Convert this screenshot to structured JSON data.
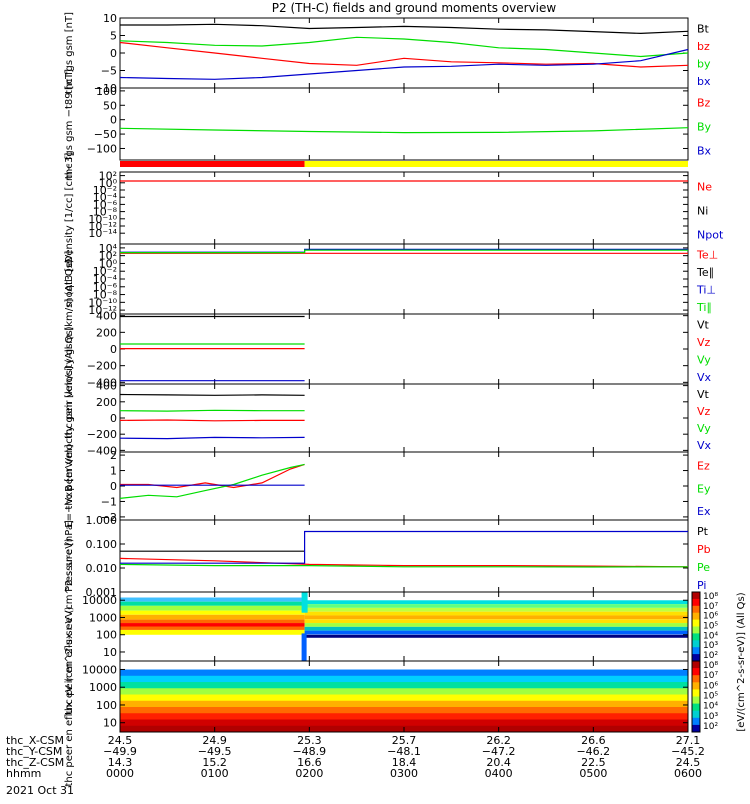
{
  "title": "P2 (TH-C) fields and ground moments overview",
  "date_label": "2021 Oct 31",
  "time_axis": {
    "row_labels": [
      "thc_X-CSM",
      "thc_Y-CSM",
      "thc_Z-CSM",
      "hhmm"
    ],
    "columns": [
      {
        "x": "24.5",
        "y": "−49.9",
        "z": "14.3",
        "t": "0000"
      },
      {
        "x": "24.9",
        "y": "−49.5",
        "z": "15.2",
        "t": "0100"
      },
      {
        "x": "25.3",
        "y": "−48.9",
        "z": "16.6",
        "t": "0200"
      },
      {
        "x": "25.7",
        "y": "−48.1",
        "z": "18.4",
        "t": "0300"
      },
      {
        "x": "26.2",
        "y": "−47.2",
        "z": "20.4",
        "t": "0400"
      },
      {
        "x": "26.6",
        "y": "−46.2",
        "z": "22.5",
        "t": "0500"
      },
      {
        "x": "27.1",
        "y": "−45.2",
        "z": "24.5",
        "t": "0600"
      }
    ]
  },
  "colors": {
    "black": "#000000",
    "red": "#ff0000",
    "green": "#00dd00",
    "blue": "#0000cc",
    "yellow": "#ffff00"
  },
  "colorbar": {
    "label": "[eV/(cm^2-s-sr-eV)] (All Qs)",
    "top_ticks": [
      "10⁸",
      "10⁷",
      "10⁶",
      "10⁵",
      "10⁴",
      "10³",
      "10²"
    ],
    "bottom_ticks": [
      "10⁸",
      "10⁷",
      "10⁶",
      "10⁵",
      "10⁴",
      "10³",
      "10²"
    ]
  },
  "chart_data": [
    {
      "type": "line",
      "ylabel": "thc fgs gsm [nT]",
      "ylim": [
        -10,
        10
      ],
      "yticks": [
        "10",
        "5",
        "0",
        "−5",
        "−10"
      ],
      "tick_values": [
        10,
        5,
        0,
        -5,
        -10
      ],
      "series": [
        {
          "name": "Bt",
          "color": "black",
          "x": [
            0,
            0.5,
            1,
            1.5,
            2,
            2.5,
            3,
            3.5,
            4,
            4.5,
            5,
            5.5,
            6
          ],
          "y": [
            8,
            8,
            8.2,
            7.8,
            7,
            7.3,
            7.6,
            7.3,
            6.8,
            6.6,
            6.1,
            5.6,
            6.2
          ]
        },
        {
          "name": "bz",
          "color": "red",
          "x": [
            0,
            0.5,
            1,
            1.5,
            2,
            2.5,
            3,
            3.5,
            4,
            4.5,
            5,
            5.5,
            6
          ],
          "y": [
            3,
            1.5,
            0,
            -1.5,
            -3,
            -3.5,
            -1.5,
            -2.5,
            -2.8,
            -3.2,
            -3,
            -4,
            -3.5
          ]
        },
        {
          "name": "by",
          "color": "green",
          "x": [
            0,
            0.5,
            1,
            1.5,
            2,
            2.5,
            3,
            3.5,
            4,
            4.5,
            5,
            5.5,
            6
          ],
          "y": [
            3.5,
            3,
            2.2,
            2,
            3,
            4.5,
            4,
            3,
            1.5,
            1,
            0,
            -1,
            0
          ]
        },
        {
          "name": "bx",
          "color": "blue",
          "x": [
            0,
            0.5,
            1,
            1.5,
            2,
            2.5,
            3,
            3.5,
            4,
            4.5,
            5,
            5.5,
            6
          ],
          "y": [
            -7,
            -7.3,
            -7.5,
            -7,
            -6,
            -5,
            -4,
            -3.8,
            -3.2,
            -3.5,
            -3.2,
            -2.2,
            1
          ]
        }
      ],
      "legend": [
        "Bt",
        "bz",
        "by",
        "bx"
      ],
      "legend_colors": [
        "black",
        "red",
        "green",
        "blue"
      ]
    },
    {
      "type": "line",
      "ylabel": "thc fgs gsm −t89 [nT]",
      "ylim": [
        -140,
        110
      ],
      "yticks": [
        "100",
        "50",
        "0",
        "−50",
        "−100"
      ],
      "tick_values": [
        100,
        50,
        0,
        -50,
        -100
      ],
      "series": [
        {
          "name": "By",
          "color": "green",
          "x": [
            0,
            1,
            2,
            3,
            4,
            5,
            6
          ],
          "y": [
            -30,
            -36,
            -41,
            -45,
            -44,
            -39,
            -28
          ]
        }
      ],
      "legend": [
        "Bz",
        "By",
        "Bx"
      ],
      "legend_colors": [
        "red",
        "green",
        "blue"
      ]
    },
    {
      "type": "line",
      "ylabel": "Density [1/cc] [cm−3]",
      "yscale": "log",
      "ylim": [
        -17,
        3
      ],
      "yticks": [
        "10²",
        "10⁰",
        "10⁻²",
        "10⁻⁴",
        "10⁻⁶",
        "10⁻⁸",
        "10⁻¹⁰",
        "10⁻¹²",
        "10⁻¹⁴"
      ],
      "tick_values": [
        2,
        0,
        -2,
        -4,
        -6,
        -8,
        -10,
        -12,
        -14
      ],
      "series": [
        {
          "name": "Ne",
          "color": "red",
          "x": [
            0,
            6
          ],
          "y": [
            0.5,
            0.5
          ]
        }
      ],
      "legend": [
        "Ne",
        "Ni",
        "Npot"
      ],
      "legend_colors": [
        "red",
        "black",
        "blue"
      ]
    },
    {
      "type": "line",
      "ylabel": "moqt3 [eV]",
      "yscale": "log",
      "ylim": [
        -13,
        5
      ],
      "yticks": [
        "10⁴",
        "10²",
        "10⁰",
        "10⁻²",
        "10⁻⁴",
        "10⁻⁶",
        "10⁻⁸",
        "10⁻¹⁰",
        "10⁻¹²"
      ],
      "tick_values": [
        4,
        2,
        0,
        -2,
        -4,
        -6,
        -8,
        -10,
        -12
      ],
      "series": [
        {
          "name": "Te⊥",
          "color": "red",
          "x": [
            0,
            1.95,
            1.95,
            6
          ],
          "y": [
            2.6,
            2.6,
            2.6,
            2.6
          ]
        },
        {
          "name": "Ti⊥",
          "color": "blue",
          "x": [
            0,
            1.95,
            1.95,
            6
          ],
          "y": [
            2.9,
            2.9,
            3.6,
            3.6
          ]
        },
        {
          "name": "Ti∥",
          "color": "green",
          "x": [
            0,
            1.95,
            1.95,
            6
          ],
          "y": [
            2.8,
            2.8,
            3.4,
            3.4
          ]
        }
      ],
      "legend": [
        "Te⊥",
        "Te∥",
        "Ti⊥",
        "Ti∥"
      ],
      "legend_colors": [
        "red",
        "black",
        "blue",
        "green"
      ]
    },
    {
      "type": "line",
      "ylabel": "thc peir velocity gsm [km/s] (All Qs)",
      "ylim": [
        -420,
        420
      ],
      "yticks": [
        "400",
        "200",
        "0",
        "−200",
        "−400"
      ],
      "tick_values": [
        400,
        200,
        0,
        -200,
        -400
      ],
      "series": [
        {
          "name": "Vt",
          "color": "black",
          "x": [
            0,
            1.95
          ],
          "y": [
            390,
            390
          ]
        },
        {
          "name": "Vz",
          "color": "red",
          "x": [
            0,
            1.95
          ],
          "y": [
            5,
            5
          ]
        },
        {
          "name": "Vy",
          "color": "green",
          "x": [
            0,
            1.95
          ],
          "y": [
            60,
            60
          ]
        },
        {
          "name": "Vx",
          "color": "blue",
          "x": [
            0,
            1.95
          ],
          "y": [
            -380,
            -380
          ]
        }
      ],
      "legend": [
        "Vt",
        "Vz",
        "Vy",
        "Vx"
      ],
      "legend_colors": [
        "black",
        "red",
        "green",
        "blue"
      ]
    },
    {
      "type": "line",
      "ylabel": "thc peer velocity gsm [km/s] (All Qs)",
      "ylim": [
        -420,
        420
      ],
      "yticks": [
        "400",
        "200",
        "0",
        "−200",
        "−400"
      ],
      "tick_values": [
        400,
        200,
        0,
        -200,
        -400
      ],
      "series": [
        {
          "name": "Vt",
          "color": "black",
          "x": [
            0,
            0.5,
            1,
            1.5,
            1.95
          ],
          "y": [
            290,
            285,
            280,
            285,
            280
          ]
        },
        {
          "name": "Vz",
          "color": "red",
          "x": [
            0,
            0.5,
            1,
            1.5,
            1.95
          ],
          "y": [
            -30,
            -25,
            -35,
            -30,
            -30
          ]
        },
        {
          "name": "Vy",
          "color": "green",
          "x": [
            0,
            0.5,
            1,
            1.5,
            1.95
          ],
          "y": [
            90,
            85,
            95,
            90,
            90
          ]
        },
        {
          "name": "Vx",
          "color": "blue",
          "x": [
            0,
            0.5,
            1,
            1.5,
            1.95
          ],
          "y": [
            -250,
            -255,
            -240,
            -245,
            -240
          ]
        }
      ],
      "legend": [
        "Vt",
        "Vz",
        "Vy",
        "Vx"
      ],
      "legend_colors": [
        "black",
        "red",
        "green",
        "blue"
      ]
    },
    {
      "type": "line",
      "ylabel": "E=−VxB [mV/m]",
      "ylim": [
        -2.2,
        2.2
      ],
      "yticks": [
        "2",
        "1",
        "0",
        "−1",
        "−2"
      ],
      "tick_values": [
        2,
        1,
        0,
        -1,
        -2
      ],
      "series": [
        {
          "name": "Ez",
          "color": "red",
          "x": [
            0,
            0.3,
            0.6,
            0.9,
            1.2,
            1.5,
            1.8,
            1.95
          ],
          "y": [
            0.1,
            0.1,
            -0.1,
            0.2,
            -0.1,
            0.2,
            1.1,
            1.4
          ]
        },
        {
          "name": "Ey",
          "color": "green",
          "x": [
            0,
            0.3,
            0.6,
            0.9,
            1.2,
            1.5,
            1.8,
            1.95
          ],
          "y": [
            -0.8,
            -0.6,
            -0.7,
            -0.3,
            0.1,
            0.7,
            1.2,
            1.4
          ]
        },
        {
          "name": "Ex",
          "color": "blue",
          "x": [
            0,
            1.95
          ],
          "y": [
            0.05,
            0.05
          ]
        }
      ],
      "legend": [
        "Ez",
        "Ey",
        "Ex"
      ],
      "legend_colors": [
        "red",
        "green",
        "blue"
      ]
    },
    {
      "type": "line",
      "ylabel": "Pressure [nPa]",
      "yscale": "log",
      "ylim": [
        -3,
        0
      ],
      "yticks": [
        "1.000",
        "0.100",
        "0.010",
        "0.001"
      ],
      "tick_values": [
        0,
        -1,
        -2,
        -3
      ],
      "series": [
        {
          "name": "Pt",
          "color": "black",
          "x": [
            0,
            1.95
          ],
          "y": [
            -1.3,
            -1.3
          ]
        },
        {
          "name": "Pb",
          "color": "red",
          "x": [
            0,
            1,
            2,
            3,
            4,
            5,
            6
          ],
          "y": [
            -1.6,
            -1.7,
            -1.85,
            -1.9,
            -1.9,
            -1.92,
            -1.95
          ]
        },
        {
          "name": "Pe",
          "color": "green",
          "x": [
            0,
            1,
            2,
            3,
            4,
            5,
            6
          ],
          "y": [
            -1.85,
            -1.9,
            -1.9,
            -1.95,
            -1.95,
            -1.96,
            -1.95
          ]
        },
        {
          "name": "Pi",
          "color": "blue",
          "x": [
            0,
            1.95,
            1.95,
            6
          ],
          "y": [
            -1.8,
            -1.8,
            -0.48,
            -0.48
          ]
        }
      ],
      "legend": [
        "Pt",
        "Pb",
        "Pe",
        "Pi"
      ],
      "legend_colors": [
        "black",
        "red",
        "green",
        "blue"
      ]
    },
    {
      "type": "heatmap",
      "ylabel": "thc peir en eflux eV (cm^2-s-sr-eV)",
      "yscale": "log",
      "ylim": [
        3,
        30000
      ],
      "yticks": [
        "10000",
        "1000",
        "100",
        "10"
      ],
      "tick_values": [
        10000,
        1000,
        100,
        10
      ]
    },
    {
      "type": "heatmap",
      "ylabel": "thc peer en eflux eV (cm^2-s-sr-eV)",
      "yscale": "log",
      "ylim": [
        3,
        30000
      ],
      "yticks": [
        "10000",
        "1000",
        "100",
        "10"
      ],
      "tick_values": [
        10000,
        1000,
        100,
        10
      ]
    }
  ]
}
